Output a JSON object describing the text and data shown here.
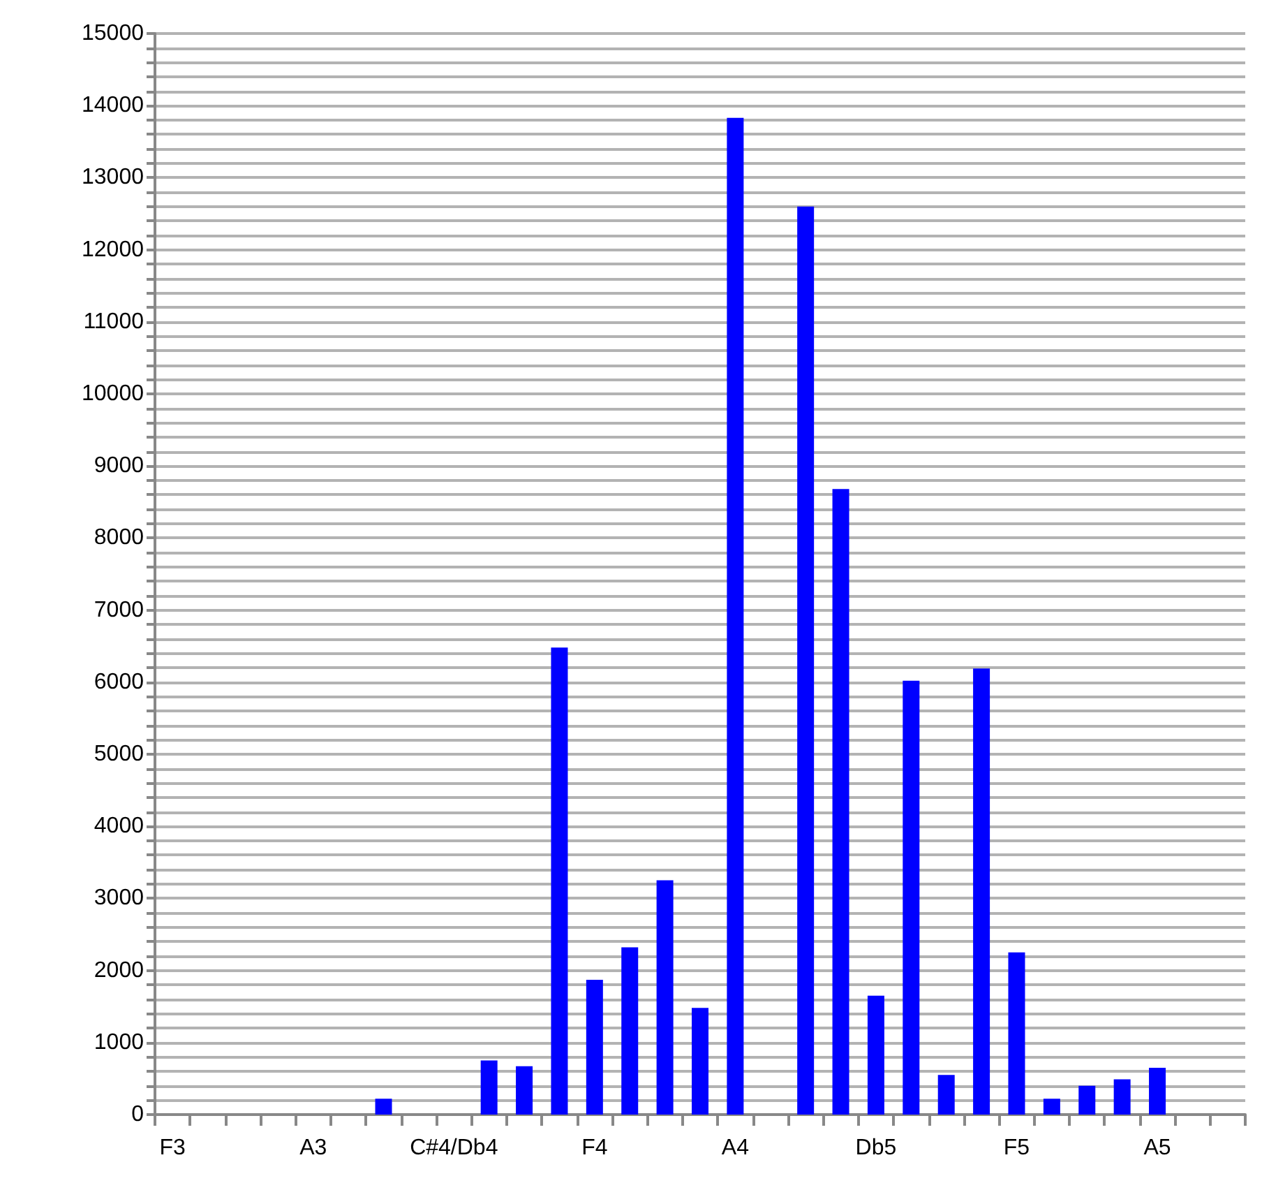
{
  "chart_data": {
    "type": "bar",
    "categories": [
      "F3",
      null,
      null,
      null,
      "A3",
      null,
      null,
      null,
      "C#4/Db4",
      null,
      null,
      null,
      "F4",
      null,
      null,
      null,
      "A4",
      null,
      null,
      null,
      "Db5",
      null,
      null,
      null,
      "F5",
      null,
      null,
      null,
      "A5",
      null,
      null
    ],
    "values": [
      0,
      0,
      0,
      0,
      0,
      0,
      220,
      0,
      0,
      750,
      670,
      6480,
      1870,
      2320,
      3250,
      1480,
      13830,
      0,
      12600,
      8680,
      1650,
      6020,
      550,
      6190,
      2250,
      220,
      400,
      490,
      650,
      0,
      0
    ],
    "color": "#0000ff",
    "ylim": [
      0,
      15000
    ],
    "yticks": [
      0,
      {
        "value": 200,
        "label": null
      },
      {
        "value": 400,
        "label": null
      },
      {
        "value": 600,
        "label": null
      },
      {
        "value": 800,
        "label": null
      },
      1000,
      {
        "value": 1200,
        "label": null
      },
      {
        "value": 1400,
        "label": null
      },
      {
        "value": 1600,
        "label": null
      },
      {
        "value": 1800,
        "label": null
      },
      2000,
      {
        "value": 2200,
        "label": null
      },
      {
        "value": 2400,
        "label": null
      },
      {
        "value": 2600,
        "label": null
      },
      {
        "value": 2800,
        "label": null
      },
      3000,
      {
        "value": 3200,
        "label": null
      },
      {
        "value": 3400,
        "label": null
      },
      {
        "value": 3600,
        "label": null
      },
      {
        "value": 3800,
        "label": null
      },
      4000,
      {
        "value": 4200,
        "label": null
      },
      {
        "value": 4400,
        "label": null
      },
      {
        "value": 4600,
        "label": null
      },
      {
        "value": 4800,
        "label": null
      },
      5000,
      {
        "value": 5200,
        "label": null
      },
      {
        "value": 5400,
        "label": null
      },
      {
        "value": 5600,
        "label": null
      },
      {
        "value": 5800,
        "label": null
      },
      6000,
      {
        "value": 6200,
        "label": null
      },
      {
        "value": 6400,
        "label": null
      },
      {
        "value": 6600,
        "label": null
      },
      {
        "value": 6800,
        "label": null
      },
      7000,
      {
        "value": 7200,
        "label": null
      },
      {
        "value": 7400,
        "label": null
      },
      {
        "value": 7600,
        "label": null
      },
      {
        "value": 7800,
        "label": null
      },
      8000,
      {
        "value": 8200,
        "label": null
      },
      {
        "value": 8400,
        "label": null
      },
      {
        "value": 8600,
        "label": null
      },
      {
        "value": 8800,
        "label": null
      },
      9000,
      {
        "value": 9200,
        "label": null
      },
      {
        "value": 9400,
        "label": null
      },
      {
        "value": 9600,
        "label": null
      },
      {
        "value": 9800,
        "label": null
      },
      10000,
      {
        "value": 10200,
        "label": null
      },
      {
        "value": 10400,
        "label": null
      },
      {
        "value": 10600,
        "label": null
      },
      {
        "value": 10800,
        "label": null
      },
      11000,
      {
        "value": 11200,
        "label": null
      },
      {
        "value": 11400,
        "label": null
      },
      {
        "value": 11600,
        "label": null
      },
      {
        "value": 11800,
        "label": null
      },
      12000,
      {
        "value": 12200,
        "label": null
      },
      {
        "value": 12400,
        "label": null
      },
      {
        "value": 12600,
        "label": null
      },
      {
        "value": 12800,
        "label": null
      },
      13000,
      {
        "value": 13200,
        "label": null
      },
      {
        "value": 13400,
        "label": null
      },
      {
        "value": 13600,
        "label": null
      },
      {
        "value": 13800,
        "label": null
      },
      14000,
      {
        "value": 14200,
        "label": null
      },
      {
        "value": 14400,
        "label": null
      },
      {
        "value": 14600,
        "label": null
      },
      {
        "value": 14800,
        "label": null
      },
      15000
    ],
    "grid": "y"
  }
}
